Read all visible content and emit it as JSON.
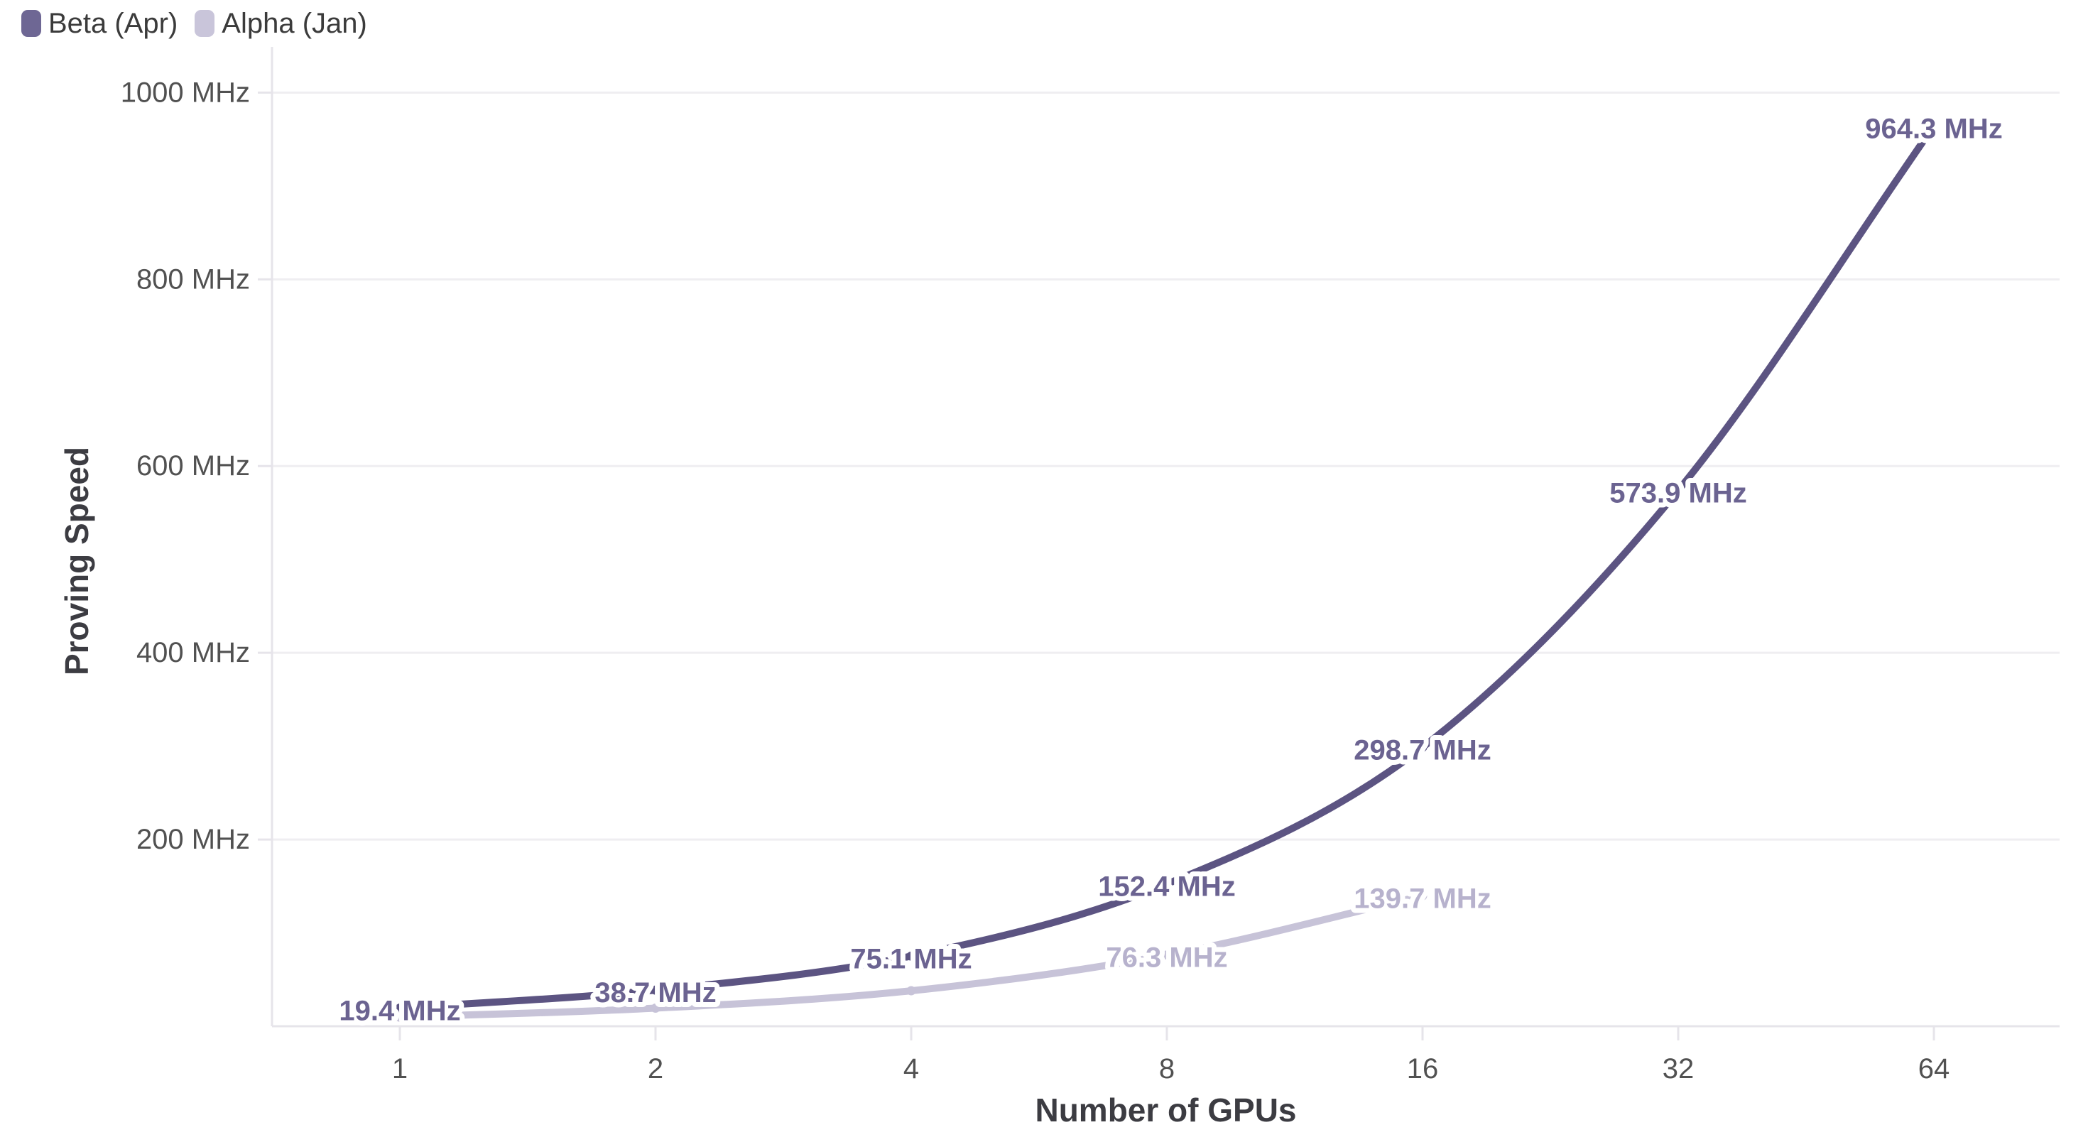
{
  "legend": {
    "items": [
      {
        "label": "Beta (Apr)",
        "color": "#6e6794"
      },
      {
        "label": "Alpha (Jan)",
        "color": "#c9c5da"
      }
    ]
  },
  "chart_data": {
    "type": "line",
    "title": "",
    "xlabel": "Number of GPUs",
    "ylabel": "Proving Speed",
    "x_scale": "log2",
    "grid": "horizontal",
    "legend_position": "top-left",
    "ylim": [
      0,
      1049
    ],
    "x_ticks": [
      {
        "v": 1,
        "label": "1"
      },
      {
        "v": 2,
        "label": "2"
      },
      {
        "v": 4,
        "label": "4"
      },
      {
        "v": 8,
        "label": "8"
      },
      {
        "v": 16,
        "label": "16"
      },
      {
        "v": 32,
        "label": "32"
      },
      {
        "v": 64,
        "label": "64"
      }
    ],
    "y_ticks": [
      {
        "v": 200,
        "label": "200 MHz"
      },
      {
        "v": 400,
        "label": "400 MHz"
      },
      {
        "v": 600,
        "label": "600 MHz"
      },
      {
        "v": 800,
        "label": "800 MHz"
      },
      {
        "v": 1000,
        "label": "1000 MHz"
      }
    ],
    "series": [
      {
        "name": "Beta (Apr)",
        "line_color": "#5c5482",
        "label_color": "#6b6391",
        "points": [
          {
            "x": 1,
            "y": 19.4,
            "label": "19.4 MHz"
          },
          {
            "x": 2,
            "y": 38.7,
            "label": "38.7 MHz"
          },
          {
            "x": 4,
            "y": 75.1,
            "label": "75.1 MHz"
          },
          {
            "x": 8,
            "y": 152.4,
            "label": "152.4 MHz"
          },
          {
            "x": 16,
            "y": 298.7,
            "label": "298.7 MHz"
          },
          {
            "x": 32,
            "y": 573.9,
            "label": "573.9 MHz"
          },
          {
            "x": 64,
            "y": 964.3,
            "label": "964.3 MHz"
          }
        ]
      },
      {
        "name": "Alpha (Jan)",
        "line_color": "#c7c3d8",
        "label_color": "#b7b2cd",
        "points": [
          {
            "x": 1,
            "y": 9.7,
            "label": ""
          },
          {
            "x": 2,
            "y": 19.4,
            "label": ""
          },
          {
            "x": 4,
            "y": 38.0,
            "label": ""
          },
          {
            "x": 8,
            "y": 76.3,
            "label": "76.3 MHz"
          },
          {
            "x": 16,
            "y": 139.7,
            "label": "139.7 MHz"
          }
        ]
      }
    ],
    "colors": {
      "grid": "#efeef1",
      "axis": "#e6e4ea",
      "tick_text": "#515151",
      "axis_title_text": "#3c3c42",
      "background": "#ffffff"
    }
  }
}
